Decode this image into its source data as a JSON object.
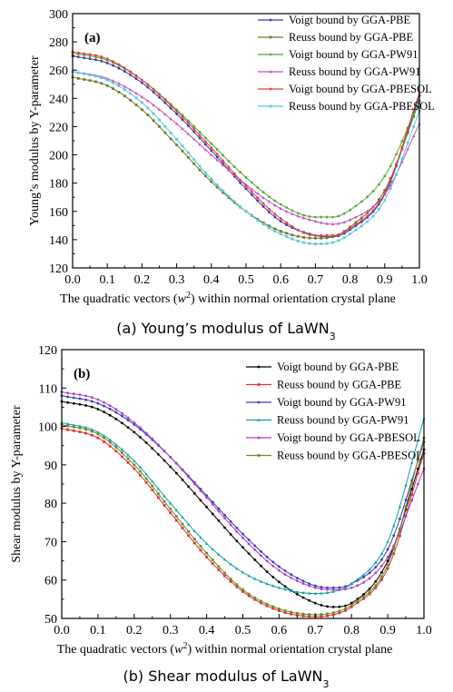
{
  "chart_data": [
    {
      "type": "line",
      "panel_label": "(a)",
      "caption": "(a) Young’s modulus of LaWN3",
      "caption_main": "(a) Young’s modulus of LaWN",
      "caption_sub": "3",
      "xlabel_pre": "The quadratic vectors (",
      "xlabel_var": "w",
      "xlabel_sup": "2",
      "xlabel_post": ") within normal orientation crystal plane",
      "ylabel": "Young’s modulus by Y-parameter",
      "xlim": [
        0.0,
        1.0
      ],
      "ylim": [
        120,
        300
      ],
      "xticks": [
        "0.0",
        "0.1",
        "0.2",
        "0.3",
        "0.4",
        "0.5",
        "0.6",
        "0.7",
        "0.8",
        "0.9",
        "1.0"
      ],
      "yticks": [
        "120",
        "140",
        "160",
        "180",
        "200",
        "220",
        "240",
        "260",
        "280",
        "300"
      ],
      "legend_position": "top-right",
      "grid": false,
      "x": [
        0.0,
        0.1,
        0.2,
        0.3,
        0.4,
        0.5,
        0.6,
        0.7,
        0.75,
        0.8,
        0.9,
        1.0
      ],
      "series": [
        {
          "name": "Voigt bound by GGA-PBE",
          "color": "#3a3aa8",
          "values": [
            270,
            265,
            251,
            229,
            203,
            176,
            153,
            143,
            142,
            147,
            172,
            242
          ]
        },
        {
          "name": "Reuss bound by GGA-PBE",
          "color": "#6b7a2a",
          "values": [
            255,
            249,
            232,
            207,
            181,
            160,
            146,
            141,
            142,
            149,
            175,
            238
          ]
        },
        {
          "name": "Voigt bound by GGA-PW91",
          "color": "#5aa83a",
          "values": [
            272,
            267,
            253,
            232,
            208,
            184,
            165,
            156,
            156,
            161,
            185,
            238
          ]
        },
        {
          "name": "Reuss bound by GGA-PW91",
          "color": "#c050c8",
          "values": [
            259,
            254,
            241,
            222,
            200,
            179,
            162,
            153,
            151,
            154,
            172,
            222
          ]
        },
        {
          "name": "Voigt bound by GGA-PBESOL",
          "color": "#e04040",
          "values": [
            273,
            268,
            253,
            231,
            205,
            178,
            155,
            143,
            143,
            148,
            173,
            244
          ]
        },
        {
          "name": "Reuss bound by GGA-PBESOL",
          "color": "#5cc8d8",
          "values": [
            259,
            253,
            237,
            211,
            183,
            160,
            144,
            137,
            138,
            144,
            168,
            231
          ]
        }
      ]
    },
    {
      "type": "line",
      "panel_label": "(b)",
      "caption": "(b) Shear modulus of LaWN3",
      "caption_main": "(b) Shear modulus of LaWN",
      "caption_sub": "3",
      "xlabel_pre": "The quadratic vectors (",
      "xlabel_var": "w",
      "xlabel_sup": "2",
      "xlabel_post": ") within normal orientation crystal plane",
      "ylabel": "Shear modulus by Y-parameter",
      "xlim": [
        0.0,
        1.0
      ],
      "ylim": [
        50,
        120
      ],
      "xticks": [
        "0.0",
        "0.1",
        "0.2",
        "0.3",
        "0.4",
        "0.5",
        "0.6",
        "0.7",
        "0.8",
        "0.9",
        "1.0"
      ],
      "yticks": [
        "50",
        "60",
        "70",
        "80",
        "90",
        "100",
        "110",
        "120"
      ],
      "legend_position": "top-right",
      "grid": false,
      "x": [
        0.0,
        0.1,
        0.2,
        0.3,
        0.4,
        0.5,
        0.6,
        0.7,
        0.75,
        0.8,
        0.9,
        1.0
      ],
      "series": [
        {
          "name": "Voigt bound by GGA-PBE",
          "color": "#000000",
          "values": [
            106.5,
            104.5,
            98.5,
            89.5,
            79,
            68.5,
            59.5,
            54,
            53,
            54,
            65,
            94
          ]
        },
        {
          "name": "Reuss bound by GGA-PBE",
          "color": "#e03030",
          "values": [
            99.5,
            97,
            89,
            77.5,
            66,
            57,
            52,
            50.5,
            51,
            53,
            63,
            93
          ]
        },
        {
          "name": "Voigt bound by GGA-PW91",
          "color": "#3a3ab8",
          "values": [
            108,
            106,
            100.5,
            92,
            82,
            72,
            63.5,
            58.5,
            58,
            59,
            68,
            96
          ]
        },
        {
          "name": "Reuss bound by GGA-PW91",
          "color": "#10a0a0",
          "values": [
            101,
            98.5,
            91,
            80,
            69.5,
            62,
            58,
            56.5,
            57,
            59,
            70,
            102
          ]
        },
        {
          "name": "Voigt bound by GGA-PBESOL",
          "color": "#b040c0",
          "values": [
            109,
            107,
            101,
            92,
            81.5,
            71,
            62.5,
            58,
            57.5,
            58,
            66,
            89
          ]
        },
        {
          "name": "Reuss bound by GGA-PBESOL",
          "color": "#6a8a2a",
          "values": [
            100.5,
            98,
            90,
            78.5,
            67,
            57.5,
            52.5,
            51,
            51.5,
            53.5,
            64,
            97
          ]
        }
      ]
    }
  ]
}
